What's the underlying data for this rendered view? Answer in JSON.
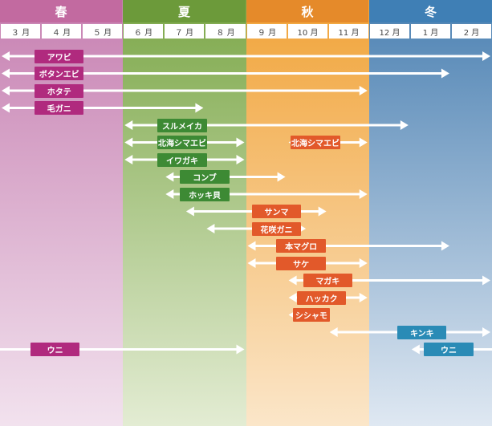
{
  "chart_data": {
    "type": "timeline",
    "seasons": [
      {
        "name": "春",
        "months": 3,
        "header_color": "#c26aa0",
        "band_top": "#c781b2",
        "band_bottom": "#f2e2ee"
      },
      {
        "name": "夏",
        "months": 3,
        "header_color": "#6c9a3a",
        "band_top": "#7da84a",
        "band_bottom": "#e3ecd3"
      },
      {
        "name": "秋",
        "months": 3,
        "header_color": "#e58a2a",
        "band_top": "#f1a43a",
        "band_bottom": "#fbe6c9"
      },
      {
        "name": "冬",
        "months": 3,
        "header_color": "#3f7fb5",
        "band_top": "#4d82b3",
        "band_bottom": "#dfe8f2"
      }
    ],
    "months": [
      "３ 月",
      "４ 月",
      "５ 月",
      "６ 月",
      "７ 月",
      "８ 月",
      "９ 月",
      "10 月",
      "11 月",
      "12 月",
      "1 月",
      "2 月"
    ],
    "label_colors": {
      "spring": "#b02a7e",
      "summer": "#3d8a34",
      "autumn": "#e2592a",
      "winter": "#2a8bb6"
    },
    "items": [
      {
        "name": "アワビ",
        "start": 0,
        "end": 12,
        "label_pos": 1.0,
        "label_w": 1.2,
        "color": "spring",
        "row": 0
      },
      {
        "name": "ボタンエビ",
        "start": 0,
        "end": 11,
        "label_pos": 1.0,
        "label_w": 1.2,
        "color": "spring",
        "row": 1
      },
      {
        "name": "ホタテ",
        "start": 0,
        "end": 9,
        "label_pos": 1.0,
        "label_w": 1.2,
        "color": "spring",
        "row": 2
      },
      {
        "name": "毛ガニ",
        "start": 0,
        "end": 5,
        "label_pos": 1.0,
        "label_w": 1.2,
        "color": "spring",
        "row": 3
      },
      {
        "name": "スルメイカ",
        "start": 3,
        "end": 10,
        "label_pos": 4.0,
        "label_w": 1.2,
        "color": "summer",
        "row": 4
      },
      {
        "name": "北海シマエビ",
        "start": 3,
        "end": 6,
        "label_pos": 4.0,
        "label_w": 1.2,
        "color": "summer",
        "row": 5
      },
      {
        "name": "北海シマエビ",
        "start": 7,
        "end": 9,
        "label_pos": 7.25,
        "label_w": 1.2,
        "color": "autumn",
        "row": 5
      },
      {
        "name": "イワガキ",
        "start": 3,
        "end": 6,
        "label_pos": 4.0,
        "label_w": 1.2,
        "color": "summer",
        "row": 6
      },
      {
        "name": "コンブ",
        "start": 4,
        "end": 7,
        "label_pos": 4.55,
        "label_w": 1.2,
        "color": "summer",
        "row": 7
      },
      {
        "name": "ホッキ貝",
        "start": 4,
        "end": 9,
        "label_pos": 4.55,
        "label_w": 1.2,
        "color": "summer",
        "row": 8
      },
      {
        "name": "サンマ",
        "start": 4.5,
        "end": 8,
        "label_pos": 6.3,
        "label_w": 1.2,
        "color": "autumn",
        "row": 9
      },
      {
        "name": "花咲ガニ",
        "start": 5,
        "end": 7.5,
        "label_pos": 6.3,
        "label_w": 1.2,
        "color": "autumn",
        "row": 10
      },
      {
        "name": "本マグロ",
        "start": 6,
        "end": 11,
        "label_pos": 6.9,
        "label_w": 1.2,
        "color": "autumn",
        "row": 11
      },
      {
        "name": "サケ",
        "start": 6,
        "end": 9,
        "label_pos": 6.9,
        "label_w": 1.2,
        "color": "autumn",
        "row": 12
      },
      {
        "name": "マガキ",
        "start": 7,
        "end": 12,
        "label_pos": 7.55,
        "label_w": 1.2,
        "color": "autumn",
        "row": 13
      },
      {
        "name": "ハッカク",
        "start": 7,
        "end": 9,
        "label_pos": 7.4,
        "label_w": 1.2,
        "color": "autumn",
        "row": 14
      },
      {
        "name": "シシャモ",
        "start": 7,
        "end": 8,
        "label_pos": 7.3,
        "label_w": 0.9,
        "color": "autumn",
        "row": 15
      },
      {
        "name": "キンキ",
        "start": 8,
        "end": 12,
        "label_pos": 9.85,
        "label_w": 1.2,
        "color": "winter",
        "row": 16
      },
      {
        "name": "ウニ",
        "start": 0,
        "end": 6,
        "label_pos": 0.9,
        "label_w": 1.2,
        "color": "spring",
        "row": 17,
        "open_start": true
      },
      {
        "name": "ウニ",
        "start": 10,
        "end": 12,
        "label_pos": 10.5,
        "label_w": 1.2,
        "color": "winter",
        "row": 17,
        "open_end": true
      }
    ]
  }
}
